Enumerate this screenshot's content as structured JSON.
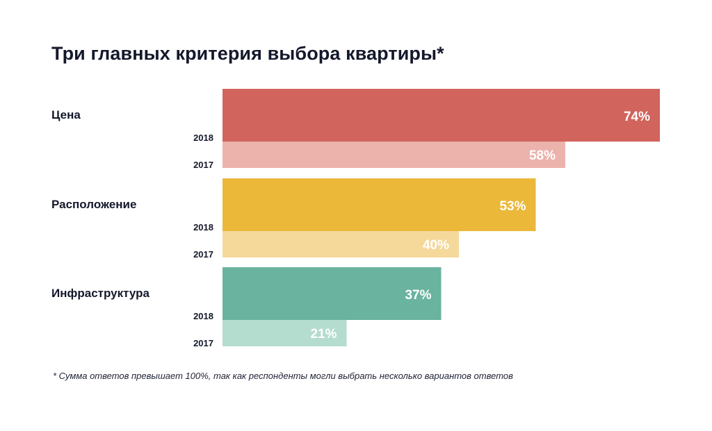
{
  "chart_data": {
    "type": "bar",
    "orientation": "horizontal",
    "title": "Три главных критерия выбора квартиры*",
    "categories": [
      "Цена",
      "Расположение",
      "Инфраструктура"
    ],
    "series": [
      {
        "name": "2018",
        "values": [
          74,
          53,
          37
        ]
      },
      {
        "name": "2017",
        "values": [
          58,
          40,
          21
        ]
      }
    ],
    "value_labels": {
      "2018": [
        "74%",
        "53%",
        "37%"
      ],
      "2017": [
        "58%",
        "40%",
        "21%"
      ]
    },
    "colors": {
      "2018": [
        "#d1645c",
        "#ebb83a",
        "#6ab39e"
      ],
      "2017": [
        "#ecb3ad",
        "#f4d99b",
        "#b4dccf"
      ]
    },
    "xlim": [
      0,
      74
    ],
    "xlabel": "",
    "ylabel": "",
    "grid": false,
    "legend": "none",
    "footnote": "* Сумма ответов превышает 100%, так как респонденты могли выбрать несколько вариантов ответов"
  }
}
